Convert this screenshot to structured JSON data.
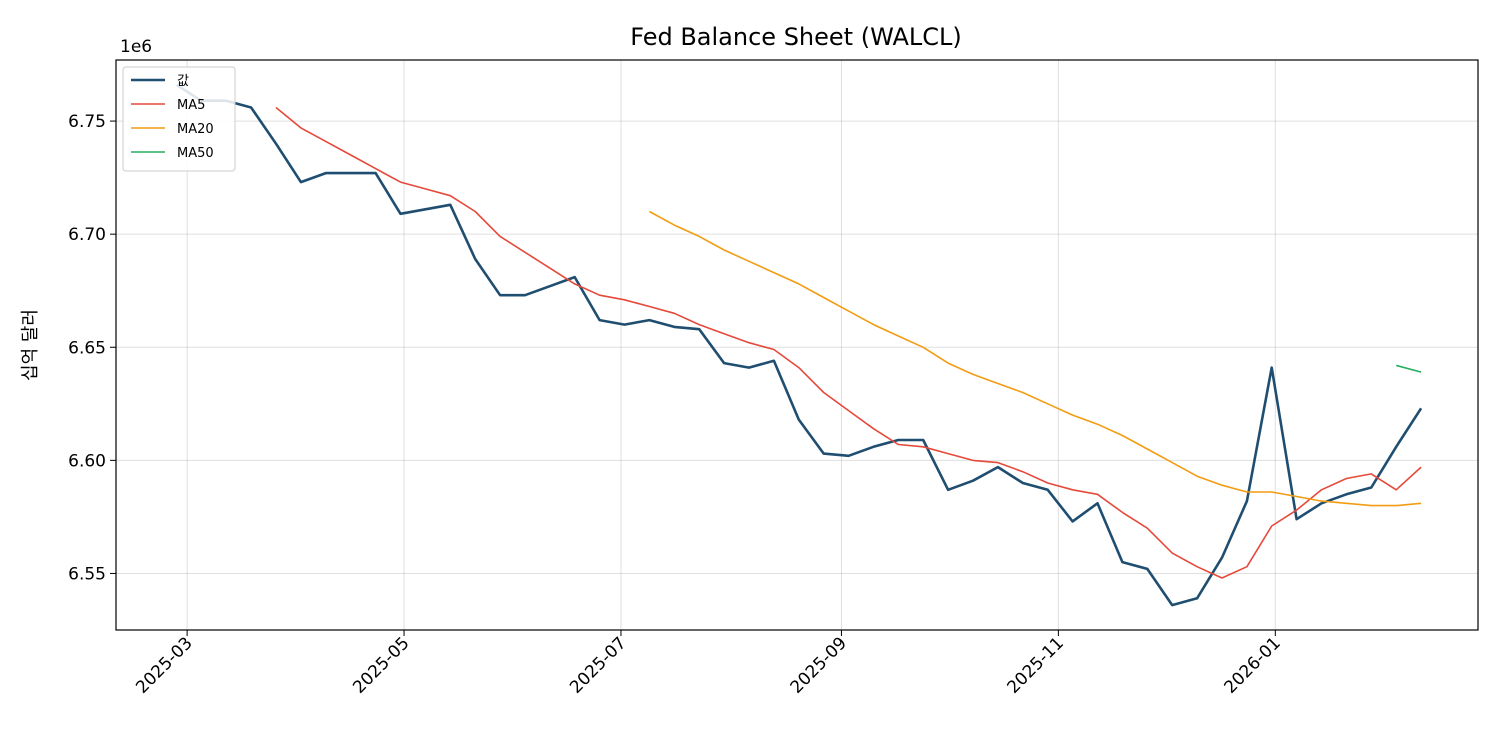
{
  "chart_data": {
    "type": "line",
    "title": "Fed Balance Sheet (WALCL)",
    "xlabel": "",
    "ylabel": "십억 달러",
    "y_offset_label": "1e6",
    "ylim": [
      6.525,
      6.777
    ],
    "xlim": [
      "2025-02-09",
      "2026-02-27"
    ],
    "yticks": [
      6.55,
      6.6,
      6.65,
      6.7,
      6.75
    ],
    "ytick_labels": [
      "6.55",
      "6.60",
      "6.65",
      "6.70",
      "6.75"
    ],
    "xticks": [
      "2025-03-01",
      "2025-05-01",
      "2025-07-01",
      "2025-09-01",
      "2025-11-01",
      "2026-01-01"
    ],
    "xtick_labels": [
      "2025-03",
      "2025-05",
      "2025-07",
      "2025-09",
      "2025-11",
      "2026-01"
    ],
    "grid": true,
    "legend": "top-left",
    "series": [
      {
        "name": "값",
        "color": "#1f4e70",
        "x": [
          "2025-02-26",
          "2025-03-05",
          "2025-03-12",
          "2025-03-19",
          "2025-03-26",
          "2025-04-02",
          "2025-04-09",
          "2025-04-16",
          "2025-04-23",
          "2025-04-30",
          "2025-05-07",
          "2025-05-14",
          "2025-05-21",
          "2025-05-28",
          "2025-06-04",
          "2025-06-11",
          "2025-06-18",
          "2025-06-25",
          "2025-07-02",
          "2025-07-09",
          "2025-07-16",
          "2025-07-23",
          "2025-07-30",
          "2025-08-06",
          "2025-08-13",
          "2025-08-20",
          "2025-08-27",
          "2025-09-03",
          "2025-09-10",
          "2025-09-17",
          "2025-09-24",
          "2025-10-01",
          "2025-10-08",
          "2025-10-15",
          "2025-10-22",
          "2025-10-29",
          "2025-11-05",
          "2025-11-12",
          "2025-11-19",
          "2025-11-26",
          "2025-12-03",
          "2025-12-10",
          "2025-12-17",
          "2025-12-24",
          "2025-12-31",
          "2026-01-07",
          "2026-01-14",
          "2026-01-21",
          "2026-01-28",
          "2026-02-04",
          "2026-02-11"
        ],
        "values": [
          6.766,
          6.759,
          6.759,
          6.756,
          6.74,
          6.723,
          6.727,
          6.727,
          6.727,
          6.709,
          6.711,
          6.713,
          6.689,
          6.673,
          6.673,
          6.677,
          6.681,
          6.662,
          6.66,
          6.662,
          6.659,
          6.658,
          6.643,
          6.641,
          6.644,
          6.618,
          6.603,
          6.602,
          6.606,
          6.609,
          6.609,
          6.587,
          6.591,
          6.597,
          6.59,
          6.587,
          6.573,
          6.581,
          6.555,
          6.552,
          6.536,
          6.539,
          6.557,
          6.582,
          6.641,
          6.574,
          6.581,
          6.585,
          6.588,
          6.606,
          6.623
        ]
      },
      {
        "name": "MA5",
        "color": "#e5493a",
        "x": [
          "2025-03-26",
          "2025-04-02",
          "2025-04-09",
          "2025-04-16",
          "2025-04-23",
          "2025-04-30",
          "2025-05-07",
          "2025-05-14",
          "2025-05-21",
          "2025-05-28",
          "2025-06-04",
          "2025-06-11",
          "2025-06-18",
          "2025-06-25",
          "2025-07-02",
          "2025-07-09",
          "2025-07-16",
          "2025-07-23",
          "2025-07-30",
          "2025-08-06",
          "2025-08-13",
          "2025-08-20",
          "2025-08-27",
          "2025-09-03",
          "2025-09-10",
          "2025-09-17",
          "2025-09-24",
          "2025-10-01",
          "2025-10-08",
          "2025-10-15",
          "2025-10-22",
          "2025-10-29",
          "2025-11-05",
          "2025-11-12",
          "2025-11-19",
          "2025-11-26",
          "2025-12-03",
          "2025-12-10",
          "2025-12-17",
          "2025-12-24",
          "2025-12-31",
          "2026-01-07",
          "2026-01-14",
          "2026-01-21",
          "2026-01-28",
          "2026-02-04",
          "2026-02-11"
        ],
        "values": [
          6.756,
          6.747,
          6.741,
          6.735,
          6.729,
          6.723,
          6.72,
          6.717,
          6.71,
          6.699,
          6.692,
          6.685,
          6.678,
          6.673,
          6.671,
          6.668,
          6.665,
          6.66,
          6.656,
          6.652,
          6.649,
          6.641,
          6.63,
          6.622,
          6.614,
          6.607,
          6.606,
          6.603,
          6.6,
          6.599,
          6.595,
          6.59,
          6.587,
          6.585,
          6.577,
          6.57,
          6.559,
          6.553,
          6.548,
          6.553,
          6.571,
          6.578,
          6.587,
          6.592,
          6.594,
          6.587,
          6.597
        ]
      },
      {
        "name": "MA20",
        "color": "#f39c12",
        "x": [
          "2025-07-09",
          "2025-07-16",
          "2025-07-23",
          "2025-07-30",
          "2025-08-06",
          "2025-08-13",
          "2025-08-20",
          "2025-08-27",
          "2025-09-03",
          "2025-09-10",
          "2025-09-17",
          "2025-09-24",
          "2025-10-01",
          "2025-10-08",
          "2025-10-15",
          "2025-10-22",
          "2025-10-29",
          "2025-11-05",
          "2025-11-12",
          "2025-11-19",
          "2025-11-26",
          "2025-12-03",
          "2025-12-10",
          "2025-12-17",
          "2025-12-24",
          "2025-12-31",
          "2026-01-07",
          "2026-01-14",
          "2026-01-21",
          "2026-01-28",
          "2026-02-04",
          "2026-02-11"
        ],
        "values": [
          6.71,
          6.704,
          6.699,
          6.693,
          6.688,
          6.683,
          6.678,
          6.672,
          6.666,
          6.66,
          6.655,
          6.65,
          6.643,
          6.638,
          6.634,
          6.63,
          6.625,
          6.62,
          6.616,
          6.611,
          6.605,
          6.599,
          6.593,
          6.589,
          6.586,
          6.586,
          6.584,
          6.582,
          6.581,
          6.58,
          6.58,
          6.581
        ]
      },
      {
        "name": "MA50",
        "color": "#27ae60",
        "x": [
          "2026-02-04",
          "2026-02-11"
        ],
        "values": [
          6.642,
          6.639
        ]
      }
    ]
  }
}
